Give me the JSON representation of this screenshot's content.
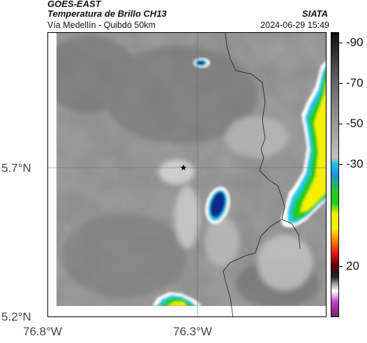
{
  "header": {
    "source": "GOES-EAST",
    "product": "Temperatura de Brillo CH13",
    "route": "Vía Medellín - Quibdó 50km",
    "org": "SIATA",
    "timestamp": "2024-06-29 15:49"
  },
  "axes": {
    "lat_ticks": [
      "5.7°N",
      "5.2°N"
    ],
    "lon_ticks": [
      "76.8°W",
      "76.3°W"
    ]
  },
  "colorbar": {
    "labels": [
      "20",
      "-30",
      "-50",
      "-70",
      "-90"
    ],
    "values": [
      20,
      -30,
      -50,
      -70,
      -90
    ],
    "range": [
      -95,
      45
    ]
  },
  "colors": {
    "cold_core": "#0b2a8a",
    "cyan": "#1ec8e8",
    "green": "#22cc22",
    "yellow": "#f4f000",
    "red": "#e01010",
    "magenta": "#c040c0"
  }
}
